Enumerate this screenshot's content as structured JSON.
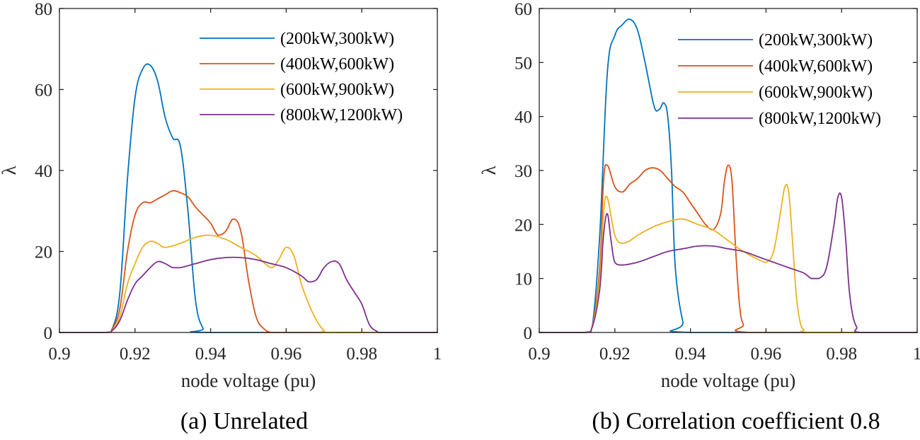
{
  "chart_data": [
    {
      "type": "line",
      "caption": "(a) Unrelated",
      "xlabel": "node voltage (pu)",
      "ylabel": "λ",
      "xlim": [
        0.9,
        1.0
      ],
      "ylim": [
        0,
        80
      ],
      "xticks": [
        "0.9",
        "0.92",
        "0.94",
        "0.96",
        "0.98",
        "1"
      ],
      "yticks": [
        "0",
        "20",
        "40",
        "60",
        "80"
      ],
      "legend_position": "top-right",
      "grid": false,
      "series": [
        {
          "name": "(200kW,300kW)",
          "color": "#0072BD",
          "x": [
            0.9,
            0.912,
            0.914,
            0.916,
            0.918,
            0.92,
            0.922,
            0.924,
            0.926,
            0.928,
            0.93,
            0.932,
            0.934,
            0.936,
            0.938,
            0.94,
            1.0
          ],
          "y": [
            0,
            0,
            1,
            10,
            38,
            58,
            65,
            66,
            62,
            53,
            48,
            46,
            30,
            8,
            1,
            0,
            0
          ]
        },
        {
          "name": "(400kW,600kW)",
          "color": "#D95319",
          "x": [
            0.9,
            0.912,
            0.914,
            0.916,
            0.918,
            0.92,
            0.922,
            0.924,
            0.926,
            0.928,
            0.93,
            0.932,
            0.934,
            0.936,
            0.938,
            0.94,
            0.942,
            0.944,
            0.946,
            0.948,
            0.95,
            0.952,
            0.954,
            0.956,
            0.958,
            1.0
          ],
          "y": [
            0,
            0,
            1,
            6,
            20,
            29,
            32,
            32,
            33,
            34,
            35,
            34.5,
            33.5,
            31,
            29,
            27,
            24,
            25,
            28,
            25,
            13,
            4,
            1,
            0,
            0,
            0
          ]
        },
        {
          "name": "(600kW,900kW)",
          "color": "#EDB120",
          "x": [
            0.9,
            0.912,
            0.914,
            0.916,
            0.918,
            0.92,
            0.922,
            0.924,
            0.926,
            0.928,
            0.932,
            0.936,
            0.94,
            0.944,
            0.948,
            0.952,
            0.956,
            0.958,
            0.96,
            0.962,
            0.964,
            0.966,
            0.968,
            0.97,
            0.972,
            1.0
          ],
          "y": [
            0,
            0,
            0.5,
            4,
            12,
            17,
            21,
            22.5,
            22,
            21,
            22,
            23.5,
            24,
            23,
            21,
            19,
            16,
            18,
            21,
            19,
            12,
            7,
            3,
            0.5,
            0,
            0
          ]
        },
        {
          "name": "(800kW,1200kW)",
          "color": "#7E2F8E",
          "x": [
            0.9,
            0.912,
            0.914,
            0.916,
            0.918,
            0.92,
            0.922,
            0.924,
            0.926,
            0.928,
            0.93,
            0.932,
            0.936,
            0.94,
            0.944,
            0.948,
            0.952,
            0.956,
            0.96,
            0.964,
            0.966,
            0.968,
            0.97,
            0.972,
            0.974,
            0.976,
            0.978,
            0.98,
            0.982,
            0.984,
            0.986,
            1.0
          ],
          "y": [
            0,
            0,
            0.5,
            3,
            8,
            12,
            14,
            16,
            17.5,
            17,
            16,
            16,
            17,
            18,
            18.5,
            18.5,
            18,
            17,
            16,
            14,
            12.5,
            13,
            16,
            17.5,
            17,
            13,
            10,
            7,
            2,
            0.3,
            0,
            0
          ]
        }
      ]
    },
    {
      "type": "line",
      "caption": "(b) Correlation coefficient 0.8",
      "xlabel": "node voltage (pu)",
      "ylabel": "λ",
      "xlim": [
        0.9,
        1.0
      ],
      "ylim": [
        0,
        60
      ],
      "xticks": [
        "0.9",
        "0.92",
        "0.94",
        "0.96",
        "0.98",
        "1"
      ],
      "yticks": [
        "0",
        "10",
        "20",
        "30",
        "40",
        "50",
        "60"
      ],
      "legend_position": "top-right",
      "grid": false,
      "series": [
        {
          "name": "(200kW,300kW)",
          "color": "#0072BD",
          "x": [
            0.9,
            0.912,
            0.914,
            0.916,
            0.918,
            0.92,
            0.922,
            0.924,
            0.926,
            0.928,
            0.93,
            0.931,
            0.932,
            0.933,
            0.934,
            0.935,
            0.936,
            0.938,
            0.94,
            1.0
          ],
          "y": [
            0,
            0,
            1,
            18,
            48,
            55,
            57,
            58,
            56,
            50,
            43,
            41,
            41.5,
            42.5,
            40,
            30,
            12,
            2,
            0,
            0
          ]
        },
        {
          "name": "(400kW,600kW)",
          "color": "#D95319",
          "x": [
            0.9,
            0.912,
            0.914,
            0.916,
            0.917,
            0.918,
            0.92,
            0.922,
            0.924,
            0.926,
            0.928,
            0.93,
            0.932,
            0.934,
            0.936,
            0.938,
            0.94,
            0.942,
            0.944,
            0.946,
            0.948,
            0.949,
            0.95,
            0.951,
            0.952,
            0.953,
            0.954,
            0.956,
            1.0
          ],
          "y": [
            0,
            0,
            1,
            12,
            28,
            31,
            27,
            26,
            27.5,
            28.5,
            30,
            30.5,
            30,
            28.5,
            27,
            26,
            24,
            22,
            20,
            19,
            22,
            28,
            31,
            28,
            15,
            5,
            1.5,
            0,
            0
          ]
        },
        {
          "name": "(600kW,900kW)",
          "color": "#EDB120",
          "x": [
            0.9,
            0.912,
            0.914,
            0.916,
            0.917,
            0.918,
            0.92,
            0.922,
            0.924,
            0.926,
            0.93,
            0.934,
            0.938,
            0.942,
            0.946,
            0.95,
            0.954,
            0.958,
            0.96,
            0.962,
            0.964,
            0.965,
            0.966,
            0.967,
            0.968,
            0.969,
            0.97,
            0.972,
            1.0
          ],
          "y": [
            0,
            0,
            1,
            10,
            22,
            25,
            18,
            16.5,
            17,
            18,
            19.5,
            20.5,
            21,
            20,
            19,
            17,
            15,
            13.5,
            13,
            15,
            23,
            27,
            26,
            17,
            7,
            2,
            0.5,
            0,
            0
          ]
        },
        {
          "name": "(800kW,1200kW)",
          "color": "#7E2F8E",
          "x": [
            0.9,
            0.912,
            0.914,
            0.916,
            0.917,
            0.918,
            0.919,
            0.92,
            0.922,
            0.926,
            0.93,
            0.934,
            0.938,
            0.942,
            0.946,
            0.95,
            0.954,
            0.958,
            0.962,
            0.966,
            0.97,
            0.972,
            0.974,
            0.976,
            0.978,
            0.979,
            0.98,
            0.981,
            0.982,
            0.983,
            0.984,
            0.985,
            1.0
          ],
          "y": [
            0,
            0,
            1,
            8,
            18,
            22,
            17,
            13,
            12.5,
            13,
            14,
            15,
            15.5,
            16,
            16,
            15.5,
            15,
            14,
            13,
            12,
            11,
            10,
            10,
            12,
            20,
            25,
            25,
            18,
            8,
            3,
            1,
            0,
            0
          ]
        }
      ]
    }
  ]
}
